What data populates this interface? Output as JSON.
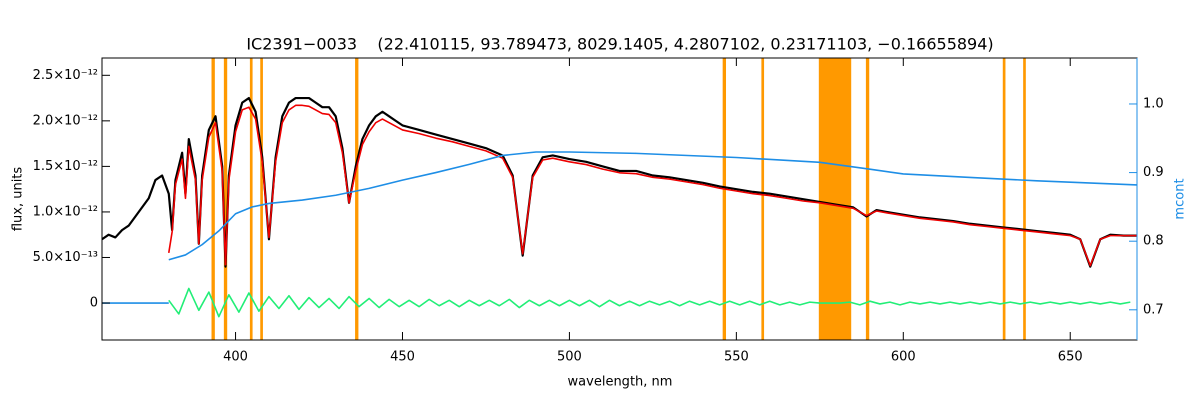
{
  "chart_data": {
    "type": "line",
    "title": "IC2391−0033    (22.410115, 93.789473, 8029.1405, 4.2807102, 0.23171103, −0.16655894)",
    "x_label": "wavelength, nm",
    "y_label": "flux, units",
    "y2_label": "mcont",
    "xlim": [
      360,
      670
    ],
    "xticks": [
      400,
      450,
      500,
      550,
      600,
      650
    ],
    "ylim": [
      -4.06e-13,
      2.69e-12
    ],
    "yticks": [
      0,
      {
        "value": 5e-13,
        "label": "5.0×10⁻¹³"
      },
      {
        "value": 1e-12,
        "label": "1.0×10⁻¹²"
      },
      {
        "value": 1.5e-12,
        "label": "1.5×10⁻¹²"
      },
      {
        "value": 2e-12,
        "label": "2.0×10⁻¹²"
      },
      {
        "value": 2.5e-12,
        "label": "2.5×10⁻¹²"
      }
    ],
    "y2lim": [
      0.656,
      1.067
    ],
    "y2ticks": [
      0.7,
      0.8,
      0.9,
      {
        "value": 1.0,
        "label": "1.0"
      }
    ],
    "y2_color": "#1e8ee6",
    "bands_color": "#ff9900",
    "bands": [
      [
        392.8,
        393.8
      ],
      [
        396.5,
        397.5
      ],
      [
        404.3,
        405.1
      ],
      [
        407.4,
        408.2
      ],
      [
        435.8,
        436.8
      ],
      [
        545.9,
        546.9
      ],
      [
        557.5,
        558.3
      ],
      [
        574.7,
        584.4
      ],
      [
        588.8,
        589.8
      ],
      [
        629.8,
        630.6
      ],
      [
        635.9,
        636.7
      ]
    ],
    "x": [
      360,
      362,
      364,
      366,
      368,
      370,
      372,
      374,
      376,
      378,
      380,
      381,
      382,
      384,
      385,
      386,
      388,
      389,
      390,
      392,
      394,
      396,
      397,
      398,
      400,
      402,
      404,
      406,
      408,
      410,
      412,
      414,
      416,
      418,
      420,
      422,
      424,
      426,
      428,
      430,
      432,
      434,
      436,
      438,
      440,
      442,
      444,
      446,
      448,
      450,
      455,
      460,
      465,
      470,
      475,
      480,
      483,
      486,
      489,
      492,
      495,
      500,
      505,
      510,
      515,
      520,
      525,
      530,
      535,
      540,
      545,
      550,
      555,
      560,
      565,
      570,
      575,
      580,
      585,
      589,
      592,
      595,
      600,
      605,
      610,
      615,
      620,
      625,
      630,
      635,
      640,
      645,
      650,
      653,
      656,
      659,
      662,
      666,
      670
    ],
    "series": [
      {
        "color": "#000000",
        "values": [
          7e-13,
          7.5e-13,
          7.2e-13,
          8e-13,
          8.5e-13,
          9.5e-13,
          1.05e-12,
          1.15e-12,
          1.35e-12,
          1.4e-12,
          1.2e-12,
          8e-13,
          1.35e-12,
          1.65e-12,
          1.2e-12,
          1.8e-12,
          1.4e-12,
          6.5e-13,
          1.4e-12,
          1.9e-12,
          2.05e-12,
          1.5e-12,
          4e-13,
          1.4e-12,
          1.95e-12,
          2.2e-12,
          2.25e-12,
          2.1e-12,
          1.6e-12,
          7e-13,
          1.6e-12,
          2.05e-12,
          2.2e-12,
          2.25e-12,
          2.25e-12,
          2.25e-12,
          2.2e-12,
          2.15e-12,
          2.15e-12,
          2.05e-12,
          1.7e-12,
          1.1e-12,
          1.5e-12,
          1.8e-12,
          1.95e-12,
          2.05e-12,
          2.1e-12,
          2.05e-12,
          2e-12,
          1.95e-12,
          1.9e-12,
          1.85e-12,
          1.8e-12,
          1.75e-12,
          1.7e-12,
          1.62e-12,
          1.4e-12,
          5.2e-13,
          1.4e-12,
          1.6e-12,
          1.62e-12,
          1.58e-12,
          1.55e-12,
          1.5e-12,
          1.45e-12,
          1.45e-12,
          1.4e-12,
          1.38e-12,
          1.35e-12,
          1.32e-12,
          1.28e-12,
          1.25e-12,
          1.22e-12,
          1.2e-12,
          1.17e-12,
          1.14e-12,
          1.11e-12,
          1.08e-12,
          1.05e-12,
          9.5e-13,
          1.02e-12,
          1e-12,
          9.7e-13,
          9.4e-13,
          9.2e-13,
          9e-13,
          8.7e-13,
          8.5e-13,
          8.3e-13,
          8.1e-13,
          7.9e-13,
          7.7e-13,
          7.5e-13,
          7e-13,
          4e-13,
          7e-13,
          7.5e-13,
          7.4e-13,
          7.4e-13
        ]
      },
      {
        "color": "#ee0000",
        "values": [
          null,
          null,
          null,
          null,
          null,
          null,
          null,
          null,
          null,
          null,
          5.5e-13,
          7.8e-13,
          1.3e-12,
          1.58e-12,
          1.15e-12,
          1.72e-12,
          1.35e-12,
          6.5e-13,
          1.35e-12,
          1.82e-12,
          1.98e-12,
          1.45e-12,
          4.2e-13,
          1.35e-12,
          1.88e-12,
          2.12e-12,
          2.15e-12,
          2.02e-12,
          1.55e-12,
          7.2e-13,
          1.55e-12,
          1.98e-12,
          2.12e-12,
          2.17e-12,
          2.17e-12,
          2.16e-12,
          2.12e-12,
          2.08e-12,
          2.07e-12,
          1.98e-12,
          1.65e-12,
          1.1e-12,
          1.45e-12,
          1.74e-12,
          1.88e-12,
          1.98e-12,
          2.02e-12,
          1.98e-12,
          1.94e-12,
          1.9e-12,
          1.86e-12,
          1.81e-12,
          1.77e-12,
          1.72e-12,
          1.67e-12,
          1.59e-12,
          1.38e-12,
          5.4e-13,
          1.38e-12,
          1.57e-12,
          1.59e-12,
          1.55e-12,
          1.52e-12,
          1.47e-12,
          1.43e-12,
          1.42e-12,
          1.38e-12,
          1.36e-12,
          1.33e-12,
          1.3e-12,
          1.26e-12,
          1.23e-12,
          1.2e-12,
          1.18e-12,
          1.15e-12,
          1.12e-12,
          1.1e-12,
          1.07e-12,
          1.04e-12,
          9.6e-13,
          1.01e-12,
          9.9e-13,
          9.6e-13,
          9.3e-13,
          9.1e-13,
          8.9e-13,
          8.6e-13,
          8.4e-13,
          8.2e-13,
          8e-13,
          7.8e-13,
          7.6e-13,
          7.4e-13,
          7e-13,
          4.1e-13,
          7e-13,
          7.4e-13,
          7.4e-13,
          7.4e-13
        ]
      },
      {
        "color": "#1e8ee6",
        "x": [
          360,
          380
        ],
        "values": [
          0,
          0
        ]
      },
      {
        "color": "#22ee77",
        "x": [
          380,
          383,
          386,
          389,
          392,
          395,
          398,
          401,
          404,
          407,
          410,
          413,
          416,
          419,
          422,
          425,
          428,
          431,
          434,
          437,
          440,
          443,
          446,
          449,
          452,
          455,
          458,
          461,
          464,
          467,
          470,
          473,
          476,
          479,
          482,
          485,
          488,
          491,
          494,
          497,
          500,
          503,
          506,
          509,
          512,
          515,
          518,
          521,
          524,
          527,
          530,
          533,
          536,
          539,
          542,
          545,
          548,
          551,
          554,
          557,
          560,
          563,
          566,
          569,
          572,
          575,
          578,
          581,
          584,
          587,
          590,
          593,
          596,
          599,
          602,
          605,
          608,
          611,
          614,
          617,
          620,
          623,
          626,
          629,
          632,
          635,
          638,
          641,
          644,
          647,
          650,
          653,
          656,
          659,
          662,
          665,
          668
        ],
        "values": [
          3e-14,
          -1.2e-13,
          1.6e-13,
          -8e-14,
          1.2e-13,
          -1.5e-13,
          9e-14,
          -1e-13,
          1.1e-13,
          -9e-14,
          7e-14,
          -6e-14,
          8e-14,
          -7e-14,
          6e-14,
          -5e-14,
          5e-14,
          -6e-14,
          7e-14,
          -4e-14,
          5e-14,
          -5e-14,
          4e-14,
          -4e-14,
          3e-14,
          -4e-14,
          4e-14,
          -3e-14,
          3e-14,
          -4e-14,
          3e-14,
          -3e-14,
          3e-14,
          -3e-14,
          4e-14,
          -5e-14,
          3e-14,
          -3e-14,
          3e-14,
          -3e-14,
          3e-14,
          -3e-14,
          3e-14,
          -4e-14,
          3e-14,
          -3e-14,
          2e-14,
          -3e-14,
          2e-14,
          -2e-14,
          2e-14,
          -3e-14,
          2e-14,
          -2e-14,
          2e-14,
          -2e-14,
          2e-14,
          -2e-14,
          2e-14,
          -2e-14,
          2e-14,
          -2e-14,
          1e-14,
          -2e-14,
          1e-14,
          0,
          0,
          0,
          1e-14,
          -2e-14,
          2e-14,
          -1e-14,
          1e-14,
          -2e-14,
          1e-14,
          -1e-14,
          1e-14,
          -1e-14,
          1e-14,
          -1e-14,
          1e-14,
          -1e-14,
          1e-14,
          -1e-14,
          1e-14,
          -1e-14,
          1e-14,
          -1e-14,
          1e-14,
          -1e-14,
          1e-14,
          -1e-14,
          1e-14,
          -1e-14,
          1e-14,
          -1e-14,
          1e-14
        ]
      },
      {
        "color": "#1e8ee6",
        "axis": "y2",
        "x": [
          380,
          385,
          390,
          395,
          400,
          405,
          410,
          420,
          430,
          440,
          450,
          460,
          470,
          480,
          490,
          500,
          520,
          550,
          575,
          590,
          600,
          620,
          640,
          660,
          670
        ],
        "values": [
          0.773,
          0.78,
          0.795,
          0.815,
          0.84,
          0.85,
          0.855,
          0.86,
          0.867,
          0.877,
          0.889,
          0.9,
          0.912,
          0.925,
          0.93,
          0.93,
          0.928,
          0.922,
          0.915,
          0.905,
          0.898,
          0.893,
          0.888,
          0.884,
          0.882
        ]
      }
    ]
  }
}
